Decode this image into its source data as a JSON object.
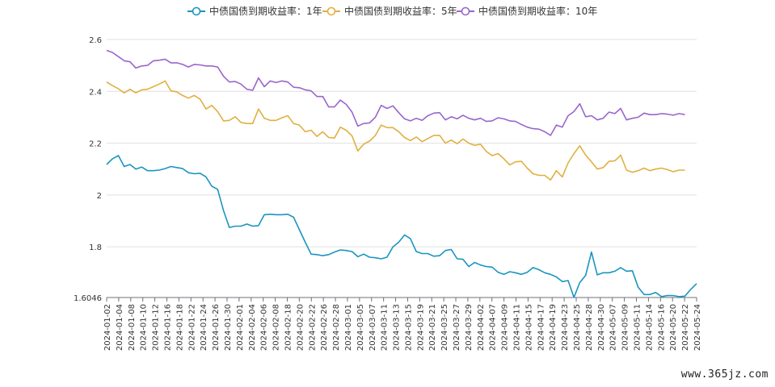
{
  "chart_data": {
    "type": "line",
    "title": "",
    "xlabel": "",
    "ylabel": "",
    "ylim": [
      1.6046,
      2.6
    ],
    "y_ticks": [
      "2.6",
      "2.4",
      "2.2",
      "2",
      "1.8",
      "1.6046"
    ],
    "grid": true,
    "legend_position": "top-center",
    "x_tick_labels": [
      "2024-01-02",
      "2024-01-04",
      "2024-01-08",
      "2024-01-10",
      "2024-01-12",
      "2024-01-16",
      "2024-01-18",
      "2024-01-22",
      "2024-01-24",
      "2024-01-26",
      "2024-01-30",
      "2024-02-01",
      "2024-02-04",
      "2024-02-06",
      "2024-02-08",
      "2024-02-18",
      "2024-02-20",
      "2024-02-22",
      "2024-02-26",
      "2024-02-28",
      "2024-03-01",
      "2024-03-05",
      "2024-03-07",
      "2024-03-11",
      "2024-03-13",
      "2024-03-15",
      "2024-03-19",
      "2024-03-21",
      "2024-03-25",
      "2024-03-27",
      "2024-03-29",
      "2024-04-02",
      "2024-04-07",
      "2024-04-09",
      "2024-04-11",
      "2024-04-15",
      "2024-04-17",
      "2024-04-19",
      "2024-04-23",
      "2024-04-25",
      "2024-04-28",
      "2024-04-30",
      "2024-05-07",
      "2024-05-09",
      "2024-05-11",
      "2024-05-14",
      "2024-05-16",
      "2024-05-20",
      "2024-05-22",
      "2024-05-24"
    ],
    "series": [
      {
        "name": "中债国债到期收益率：1年",
        "color": "#1a95c0",
        "values": [
          2.118,
          2.14,
          2.152,
          2.11,
          2.118,
          2.1,
          2.108,
          2.094,
          2.094,
          2.096,
          2.102,
          2.11,
          2.106,
          2.102,
          2.086,
          2.082,
          2.084,
          2.07,
          2.034,
          2.022,
          1.94,
          1.875,
          1.88,
          1.88,
          1.888,
          1.88,
          1.882,
          1.924,
          1.926,
          1.924,
          1.924,
          1.926,
          1.914,
          1.866,
          1.818,
          1.772,
          1.77,
          1.766,
          1.77,
          1.78,
          1.788,
          1.786,
          1.782,
          1.762,
          1.772,
          1.76,
          1.758,
          1.754,
          1.76,
          1.8,
          1.818,
          1.846,
          1.832,
          1.782,
          1.774,
          1.774,
          1.764,
          1.766,
          1.786,
          1.79,
          1.754,
          1.752,
          1.724,
          1.74,
          1.73,
          1.724,
          1.722,
          1.702,
          1.694,
          1.704,
          1.7,
          1.694,
          1.702,
          1.72,
          1.712,
          1.7,
          1.694,
          1.684,
          1.666,
          1.67,
          1.605,
          1.662,
          1.69,
          1.78,
          1.692,
          1.7,
          1.7,
          1.706,
          1.72,
          1.706,
          1.708,
          1.644,
          1.616,
          1.616,
          1.624,
          1.608,
          1.612,
          1.612,
          1.608,
          1.61,
          1.636,
          1.658
        ]
      },
      {
        "name": "中债国债到期收益率：5年",
        "color": "#e0b040",
        "values": [
          2.436,
          2.422,
          2.41,
          2.394,
          2.408,
          2.394,
          2.406,
          2.408,
          2.418,
          2.428,
          2.44,
          2.402,
          2.398,
          2.384,
          2.374,
          2.384,
          2.37,
          2.332,
          2.346,
          2.322,
          2.286,
          2.288,
          2.302,
          2.28,
          2.276,
          2.276,
          2.332,
          2.296,
          2.288,
          2.288,
          2.298,
          2.306,
          2.276,
          2.27,
          2.244,
          2.25,
          2.226,
          2.244,
          2.222,
          2.22,
          2.262,
          2.25,
          2.228,
          2.17,
          2.196,
          2.208,
          2.23,
          2.27,
          2.26,
          2.26,
          2.244,
          2.222,
          2.21,
          2.224,
          2.206,
          2.218,
          2.23,
          2.23,
          2.2,
          2.212,
          2.198,
          2.216,
          2.2,
          2.192,
          2.196,
          2.168,
          2.152,
          2.16,
          2.14,
          2.116,
          2.128,
          2.13,
          2.104,
          2.082,
          2.076,
          2.076,
          2.058,
          2.094,
          2.07,
          2.124,
          2.16,
          2.19,
          2.154,
          2.128,
          2.1,
          2.106,
          2.13,
          2.132,
          2.154,
          2.096,
          2.088,
          2.094,
          2.104,
          2.094,
          2.1,
          2.104,
          2.098,
          2.09,
          2.096,
          2.096
        ]
      },
      {
        "name": "中债国债到期收益率：10年",
        "color": "#9966cc",
        "values": [
          2.558,
          2.55,
          2.534,
          2.518,
          2.514,
          2.49,
          2.498,
          2.5,
          2.518,
          2.52,
          2.524,
          2.51,
          2.51,
          2.504,
          2.494,
          2.504,
          2.502,
          2.498,
          2.498,
          2.494,
          2.458,
          2.436,
          2.438,
          2.428,
          2.408,
          2.404,
          2.452,
          2.418,
          2.44,
          2.434,
          2.44,
          2.436,
          2.416,
          2.414,
          2.406,
          2.402,
          2.38,
          2.38,
          2.34,
          2.34,
          2.366,
          2.35,
          2.32,
          2.266,
          2.276,
          2.278,
          2.3,
          2.346,
          2.334,
          2.344,
          2.318,
          2.294,
          2.286,
          2.296,
          2.288,
          2.306,
          2.316,
          2.318,
          2.29,
          2.302,
          2.294,
          2.308,
          2.296,
          2.29,
          2.296,
          2.284,
          2.286,
          2.298,
          2.294,
          2.286,
          2.284,
          2.272,
          2.262,
          2.256,
          2.254,
          2.244,
          2.23,
          2.27,
          2.262,
          2.306,
          2.322,
          2.352,
          2.302,
          2.306,
          2.29,
          2.296,
          2.32,
          2.314,
          2.334,
          2.29,
          2.296,
          2.3,
          2.316,
          2.31,
          2.31,
          2.314,
          2.312,
          2.308,
          2.314,
          2.31
        ]
      }
    ]
  },
  "watermark": "www.365jz.com"
}
